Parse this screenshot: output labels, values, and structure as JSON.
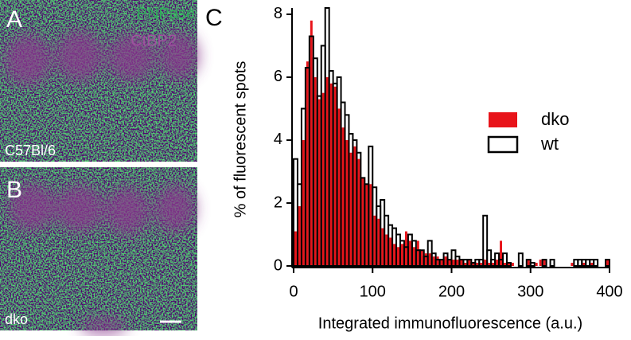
{
  "panels": [
    {
      "label": "A",
      "channels": [
        "PNPase",
        "CtBP2"
      ],
      "caption": "C57Bl/6"
    },
    {
      "label": "B",
      "caption": "dko"
    }
  ],
  "chart_label": "C",
  "chart_data": {
    "type": "histogram",
    "x_label": "Integrated immunofluorescence (a.u.)",
    "y_label": "% of fluorescent spots",
    "bins": [
      0,
      5,
      10,
      15,
      20,
      25,
      30,
      35,
      40,
      45,
      50,
      55,
      60,
      65,
      70,
      75,
      80,
      85,
      90,
      95,
      100,
      105,
      110,
      115,
      120,
      125,
      130,
      135,
      140,
      145,
      150,
      155,
      160,
      165,
      170,
      175,
      180,
      185,
      190,
      195,
      200,
      205,
      210,
      215,
      220,
      225,
      230,
      235,
      240,
      245,
      250,
      255,
      260,
      265,
      270,
      275,
      280,
      285,
      290,
      295,
      300,
      305,
      310,
      315,
      320,
      325,
      330,
      335,
      340,
      345,
      350,
      355,
      360,
      365,
      370,
      375,
      380,
      385,
      390,
      395,
      400
    ],
    "series": [
      {
        "name": "dko",
        "color": "#e8141a",
        "style": "filled",
        "values": [
          1.1,
          1.9,
          4.0,
          6.5,
          7.8,
          6.0,
          5.3,
          5.5,
          6.0,
          5.8,
          5.7,
          5.0,
          4.4,
          4.0,
          3.6,
          3.8,
          3.4,
          2.8,
          2.6,
          2.6,
          1.6,
          1.5,
          1.2,
          1.0,
          0.9,
          0.7,
          0.6,
          0.7,
          1.1,
          0.8,
          0.6,
          0.8,
          0.5,
          0.4,
          0.4,
          0.3,
          0.3,
          0.2,
          0.3,
          0.2,
          0.2,
          0.2,
          0.2,
          0.1,
          0.2,
          0.1,
          0.1,
          0.1,
          0.2,
          0.1,
          0.1,
          0.2,
          0.8,
          0.1,
          0.1,
          0.1,
          0,
          0,
          0,
          0.2,
          0,
          0.1,
          0.2,
          0.2,
          0,
          0,
          0,
          0,
          0,
          0,
          0.1,
          0,
          0,
          0.1,
          0,
          0.1,
          0,
          0,
          0,
          0.2
        ]
      },
      {
        "name": "wt",
        "color": "#000000",
        "style": "outline",
        "values": [
          3.4,
          2.6,
          5.0,
          6.3,
          7.3,
          6.6,
          5.4,
          7.0,
          8.2,
          6.2,
          5.8,
          6.0,
          5.2,
          4.8,
          4.2,
          4.0,
          3.6,
          2.8,
          2.6,
          3.8,
          2.5,
          1.9,
          2.1,
          1.6,
          1.3,
          1.2,
          1.0,
          0.8,
          0.6,
          1.0,
          0.8,
          0.5,
          0.5,
          0.3,
          0.8,
          0.4,
          0.2,
          0.2,
          0.4,
          0.2,
          0.5,
          0.3,
          0.2,
          0.2,
          0.2,
          0.1,
          0.2,
          0.2,
          1.6,
          0.5,
          0.2,
          0.4,
          0.2,
          0.4,
          0.1,
          0,
          0,
          0.4,
          0,
          0.2,
          0.1,
          0,
          0,
          0.2,
          0,
          0.2,
          0,
          0,
          0,
          0,
          0,
          0.2,
          0.2,
          0.2,
          0.2,
          0.2,
          0.2,
          0,
          0,
          0.2
        ]
      }
    ],
    "xlim": [
      0,
      400
    ],
    "xticks": [
      0,
      100,
      200,
      300,
      400
    ],
    "ylim": [
      0,
      8.2
    ],
    "yticks": [
      0,
      2,
      4,
      6,
      8
    ],
    "legend": "right"
  }
}
